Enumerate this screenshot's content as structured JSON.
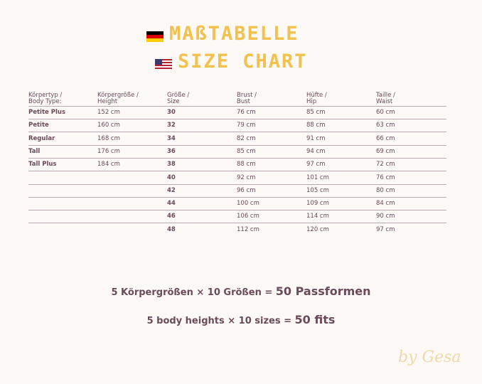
{
  "title": {
    "de": "MAßTABELLE",
    "en": "SIZE CHART"
  },
  "table": {
    "headers": [
      [
        "Körpertyp /",
        "Body Type:"
      ],
      [
        "Körpergröße /",
        "Height"
      ],
      [
        "Größe /",
        "Size"
      ],
      [
        "Brust /",
        "Bust"
      ],
      [
        "Hüfte /",
        "Hip"
      ],
      [
        "Taille /",
        "Waist"
      ]
    ],
    "rows": [
      {
        "type": "Petite Plus",
        "height": "152 cm",
        "size": "30",
        "bust": "76 cm",
        "hip": "85 cm",
        "waist": "60 cm"
      },
      {
        "type": "Petite",
        "height": "160 cm",
        "size": "32",
        "bust": "79 cm",
        "hip": "88 cm",
        "waist": "63 cm"
      },
      {
        "type": "Regular",
        "height": "168 cm",
        "size": "34",
        "bust": "82 cm",
        "hip": "91 cm",
        "waist": "66 cm"
      },
      {
        "type": "Tall",
        "height": "176 cm",
        "size": "36",
        "bust": "85 cm",
        "hip": "94 cm",
        "waist": "69 cm"
      },
      {
        "type": "Tall Plus",
        "height": "184 cm",
        "size": "38",
        "bust": "88 cm",
        "hip": "97 cm",
        "waist": "72 cm"
      },
      {
        "size": "40",
        "bust": "92 cm",
        "hip": "101 cm",
        "waist": "76 cm"
      },
      {
        "size": "42",
        "bust": "96 cm",
        "hip": "105 cm",
        "waist": "80 cm"
      },
      {
        "size": "44",
        "bust": "100 cm",
        "hip": "109 cm",
        "waist": "84 cm"
      },
      {
        "size": "46",
        "bust": "106 cm",
        "hip": "114 cm",
        "waist": "90 cm"
      },
      {
        "size": "48",
        "bust": "112 cm",
        "hip": "120 cm",
        "waist": "97 cm"
      }
    ]
  },
  "summary": {
    "de": {
      "text": "5 Körpergrößen × 10 Größen =",
      "result": "50 Passformen"
    },
    "en": {
      "text": "5 body heights × 10 sizes =",
      "result": "50 fits"
    }
  },
  "signature": "by Gesa"
}
